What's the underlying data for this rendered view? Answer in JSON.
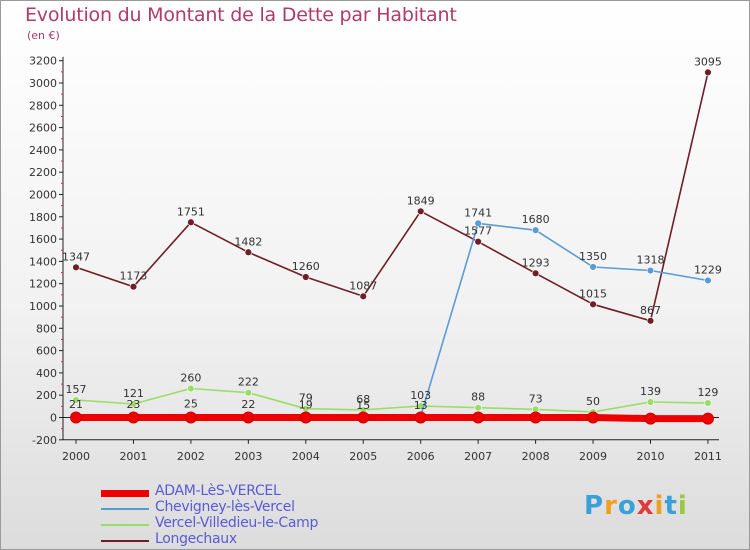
{
  "title": "Evolution du Montant de la Dette par Habitant",
  "subtitle": "(en €)",
  "logo": {
    "text": "Proxiti",
    "colors": [
      "#3aa0d8",
      "#f0a020",
      "#3aa0d8",
      "#e03a3a",
      "#f0a020",
      "#3aa0d8",
      "#9ac840"
    ]
  },
  "chart_data": {
    "type": "line",
    "title": "Evolution du Montant de la Dette par Habitant",
    "ylabel": "(en €)",
    "xlabel": "",
    "x": [
      "2000",
      "2001",
      "2002",
      "2003",
      "2004",
      "2005",
      "2006",
      "2007",
      "2008",
      "2009",
      "2010",
      "2011"
    ],
    "ylim": [
      -200,
      3200
    ],
    "yticks": [
      -200,
      0,
      200,
      400,
      600,
      800,
      1000,
      1200,
      1400,
      1600,
      1800,
      2000,
      2200,
      2400,
      2600,
      2800,
      3000,
      3200
    ],
    "grid": false,
    "legend_position": "bottom-left",
    "series": [
      {
        "name": "ADAM-LèS-VERCEL",
        "color": "#ee0000",
        "values": [
          0,
          0,
          0,
          0,
          0,
          0,
          0,
          0,
          0,
          0,
          -10,
          -10
        ],
        "labels": [
          "",
          "",
          "",
          "",
          "",
          "",
          "",
          "",
          "",
          "",
          "",
          ""
        ]
      },
      {
        "name": "Chevigney-lès-Vercel",
        "color": "#5b9bd5",
        "values": [
          21,
          23,
          25,
          22,
          19,
          15,
          13,
          1741,
          1680,
          1350,
          1318,
          1229
        ],
        "labels": [
          "21",
          "23",
          "25",
          "22",
          "19",
          "15",
          "13",
          "1741",
          "1680",
          "1350",
          "1318",
          "1229"
        ]
      },
      {
        "name": "Vercel-Villedieu-le-Camp",
        "color": "#99dd66",
        "values": [
          157,
          121,
          260,
          222,
          79,
          68,
          103,
          88,
          73,
          50,
          139,
          129
        ],
        "labels": [
          "157",
          "121",
          "260",
          "222",
          "79",
          "68",
          "103",
          "88",
          "73",
          "50",
          "139",
          "129"
        ]
      },
      {
        "name": "Longechaux",
        "color": "#6e1e28",
        "values": [
          1347,
          1173,
          1751,
          1482,
          1260,
          1087,
          1849,
          1577,
          1293,
          1015,
          867,
          3095
        ],
        "labels": [
          "1347",
          "1173",
          "1751",
          "1482",
          "1260",
          "1087",
          "1849",
          "1577",
          "1293",
          "1015",
          "867",
          "3095"
        ]
      }
    ]
  }
}
